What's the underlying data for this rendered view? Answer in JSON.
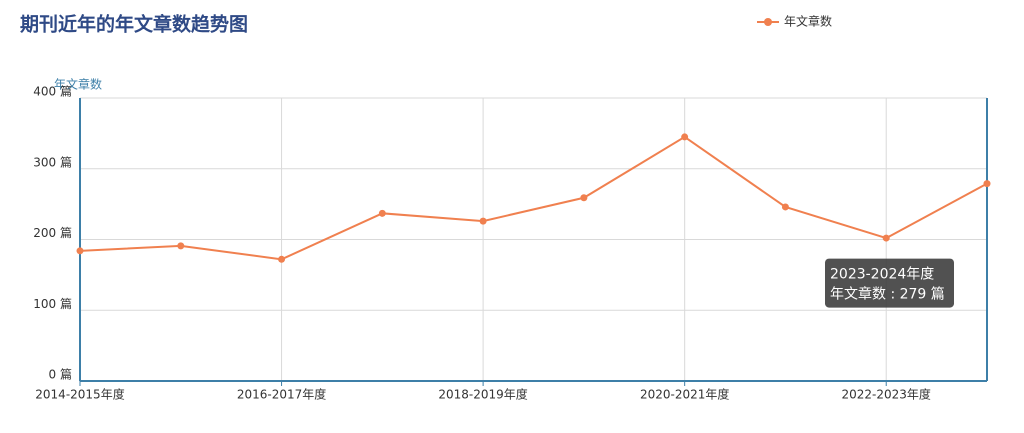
{
  "chart_data": {
    "type": "line",
    "title": "期刊近年的年文章数趋势图",
    "y_axis_label": "年文章数",
    "categories": [
      "2014-2015年度",
      null,
      "2016-2017年度",
      null,
      "2018-2019年度",
      null,
      "2020-2021年度",
      null,
      "2022-2023年度",
      null
    ],
    "series": [
      {
        "name": "年文章数",
        "color": "#f0804f",
        "values": [
          184,
          191,
          172,
          237,
          226,
          259,
          345,
          246,
          202,
          279
        ]
      }
    ],
    "ylim": [
      0,
      400
    ],
    "yticks": [
      {
        "value": 0,
        "label": "0 篇"
      },
      {
        "value": 100,
        "label": "100 篇"
      },
      {
        "value": 200,
        "label": "200 篇"
      },
      {
        "value": 300,
        "label": "300 篇"
      },
      {
        "value": 400,
        "label": "400 篇"
      }
    ],
    "grid": true,
    "legend": "top-right",
    "tooltip": {
      "category": "2023-2024年度",
      "label": "年文章数 : 279 篇"
    }
  }
}
